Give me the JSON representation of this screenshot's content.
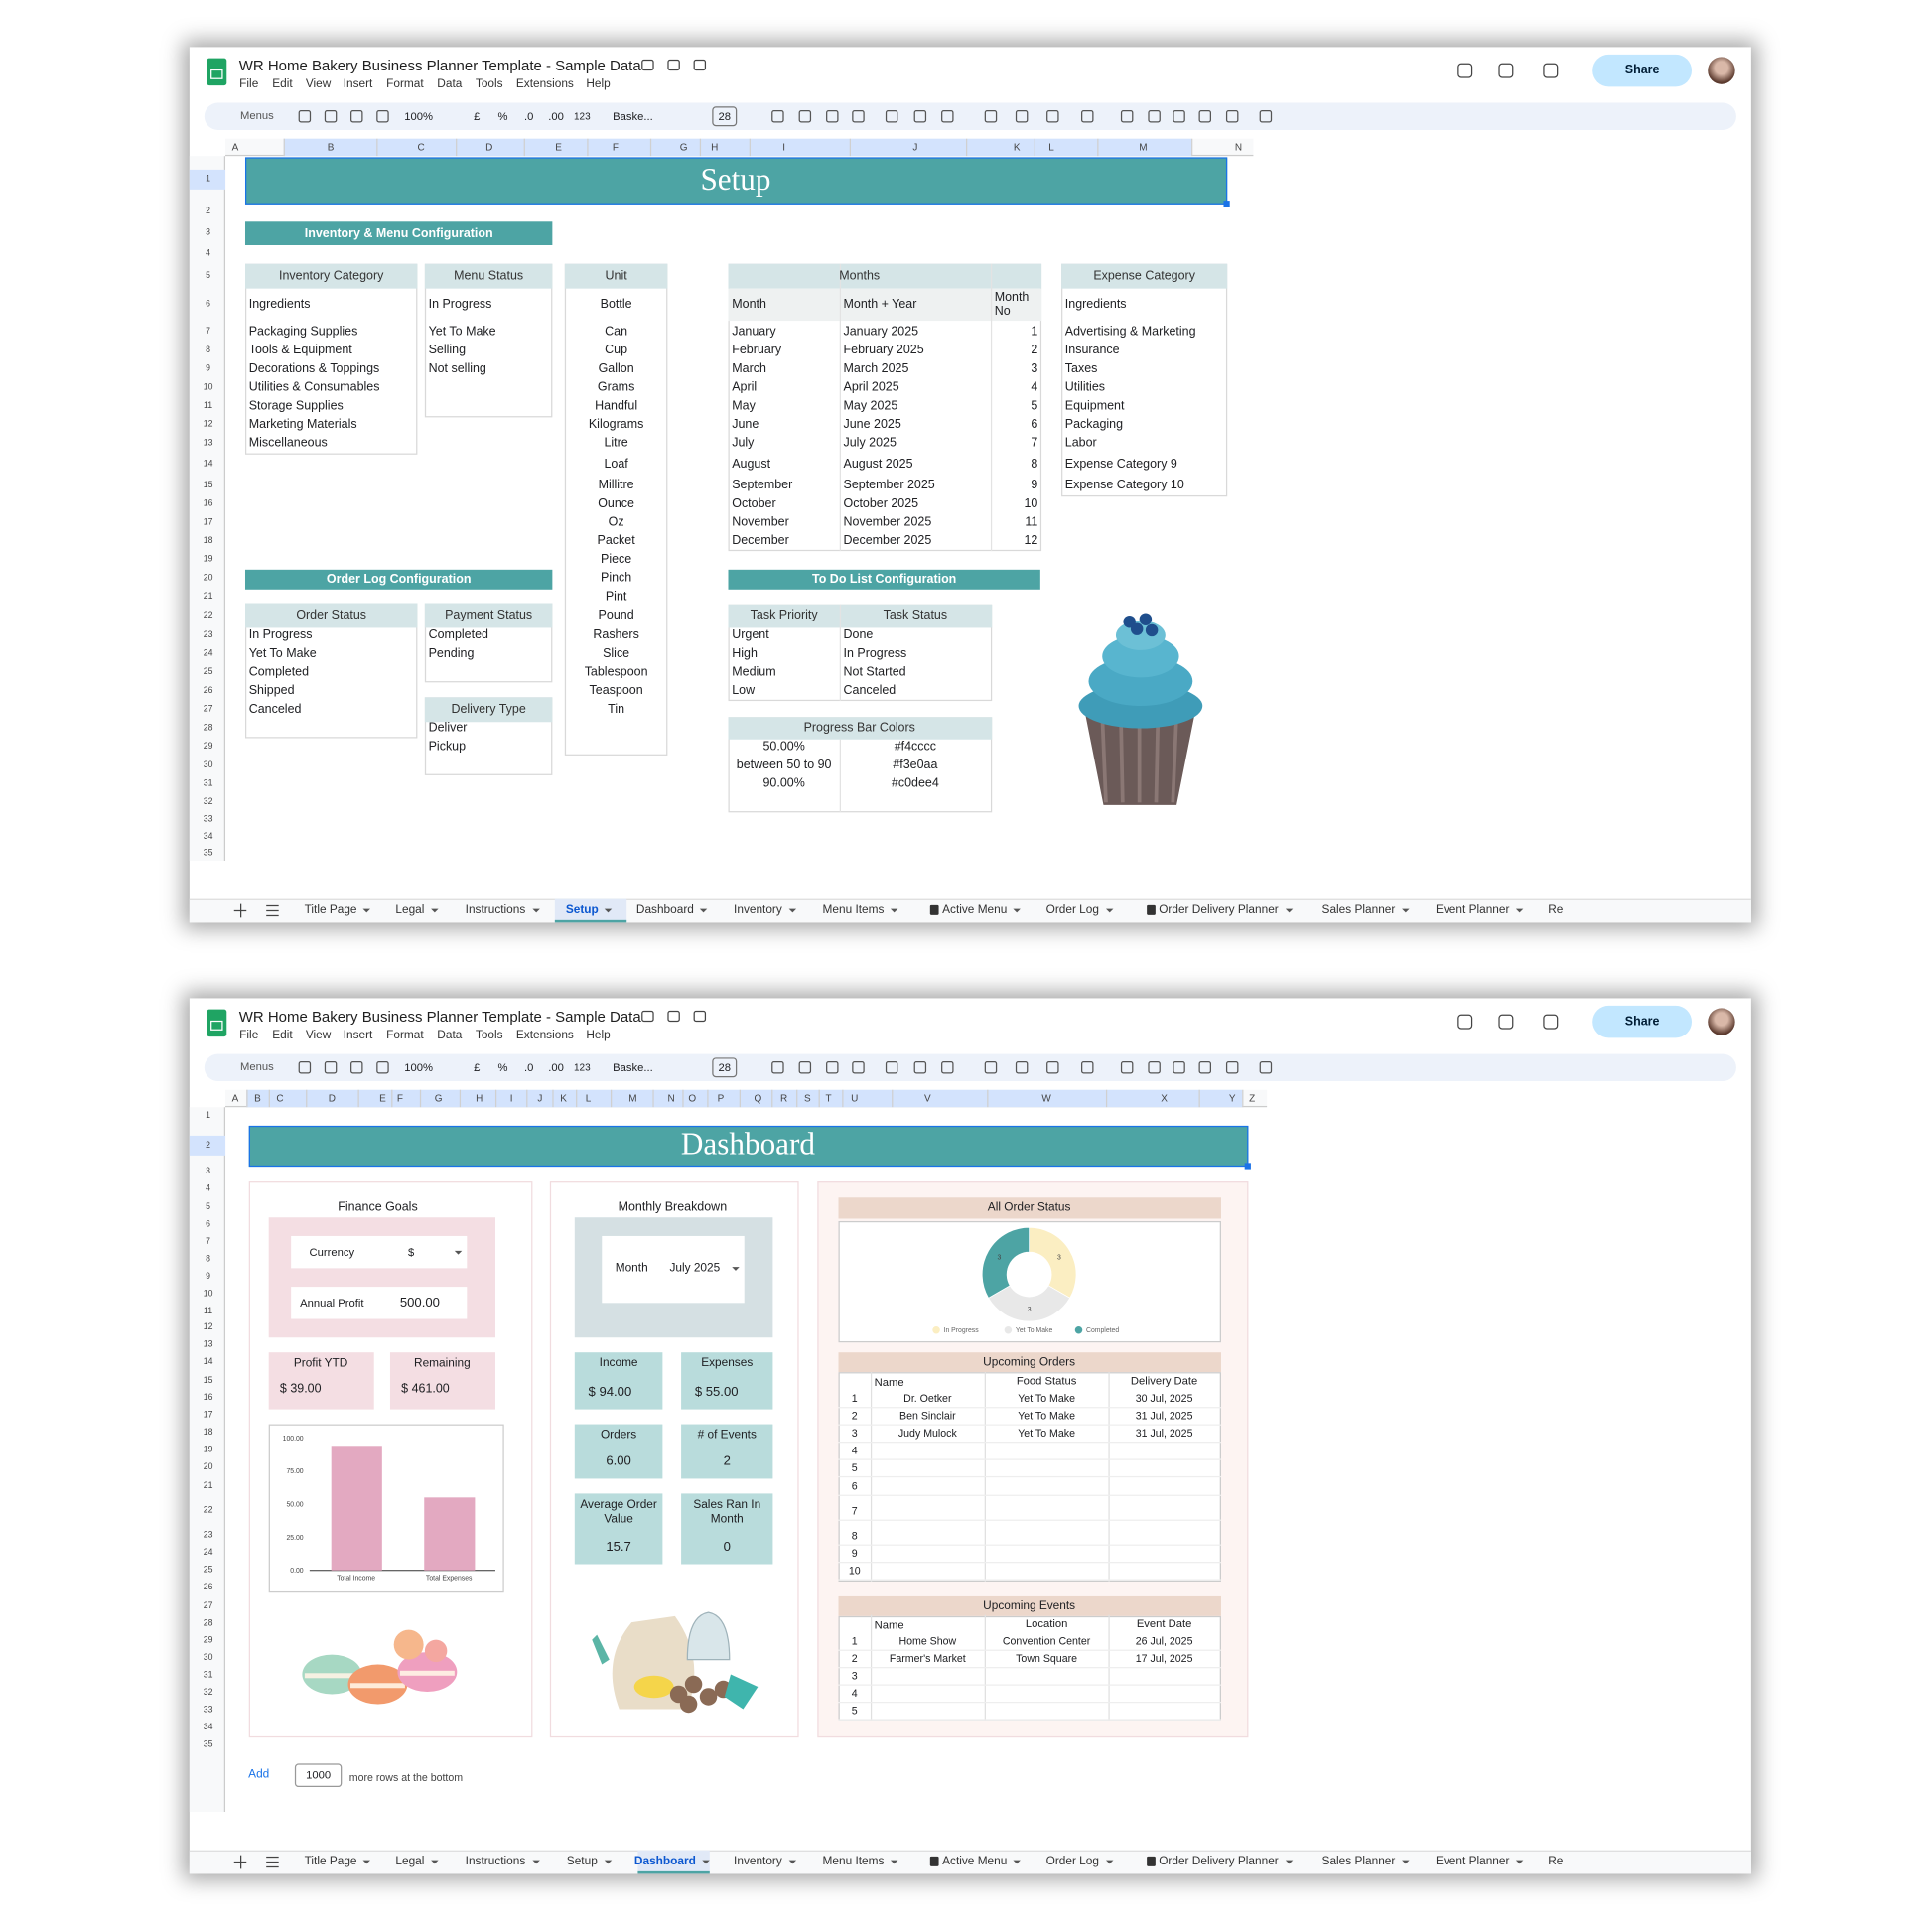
{
  "app": {
    "doc_title": "WR Home Bakery Business Planner Template - Sample Data",
    "menu": [
      "File",
      "Edit",
      "View",
      "Insert",
      "Format",
      "Data",
      "Tools",
      "Extensions",
      "Help"
    ],
    "toolbar": {
      "search": "Menus",
      "zoom": "100%",
      "currency": "£",
      "percent": "%",
      "decimal_less": ".0",
      "decimal_more": ".00",
      "number_format": "123",
      "font": "Baske...",
      "font_size": "28"
    },
    "share": "Share",
    "tabs": [
      "Title Page",
      "Legal",
      "Instructions",
      "Setup",
      "Dashboard",
      "Inventory",
      "Menu Items",
      "Active Menu",
      "Order Log",
      "Order Delivery Planner",
      "Sales Planner",
      "Event Planner",
      "Re"
    ]
  },
  "row_numbers": [
    1,
    2,
    3,
    4,
    5,
    6,
    7,
    8,
    9,
    10,
    11,
    12,
    13,
    14,
    15,
    16,
    17,
    18,
    19,
    20,
    21,
    22,
    23,
    24,
    25,
    26,
    27,
    28,
    29,
    30,
    31,
    32,
    33,
    34,
    35
  ],
  "windows": [
    {
      "columns": [
        "A",
        "B",
        "C",
        "D",
        "E",
        "F",
        "G",
        "H",
        "I",
        "J",
        "K",
        "L",
        "M",
        "N"
      ]
    },
    {
      "columns": [
        "A",
        "B",
        "C",
        "D",
        "E",
        "F",
        "G",
        "H",
        "I",
        "J",
        "K",
        "L",
        "M",
        "N",
        "O",
        "P",
        "Q",
        "R",
        "S",
        "T",
        "U",
        "V",
        "W",
        "X",
        "Y",
        "Z"
      ],
      "add_rows": {
        "button": "Add",
        "count": "1000",
        "text": "more rows at the bottom"
      }
    }
  ],
  "setup": {
    "title": "Setup",
    "sections": [
      "Inventory & Menu Configuration",
      "Order Log Configuration",
      "To Do List Configuration"
    ],
    "inventory_category": {
      "header": "Inventory Category",
      "items": [
        "Ingredients",
        "Packaging Supplies",
        "Tools & Equipment",
        "Decorations & Toppings",
        "Utilities & Consumables",
        "Storage Supplies",
        "Marketing Materials",
        "Miscellaneous"
      ]
    },
    "menu_status": {
      "header": "Menu Status",
      "items": [
        "In Progress",
        "Yet To Make",
        "Selling",
        "Not selling"
      ]
    },
    "unit": {
      "header": "Unit",
      "items": [
        "Bottle",
        "Can",
        "Cup",
        "Gallon",
        "Grams",
        "Handful",
        "Kilograms",
        "Litre",
        "Loaf",
        "Millitre",
        "Ounce",
        "Oz",
        "Packet",
        "Piece",
        "Pinch",
        "Pint",
        "Pound",
        "Rashers",
        "Slice",
        "Tablespoon",
        "Teaspoon",
        "Tin"
      ]
    },
    "months": {
      "title": "Months",
      "columns": [
        "Month",
        "Month + Year",
        "Month No"
      ],
      "rows": [
        [
          "January",
          "January 2025",
          1
        ],
        [
          "February",
          "February 2025",
          2
        ],
        [
          "March",
          "March 2025",
          3
        ],
        [
          "April",
          "April 2025",
          4
        ],
        [
          "May",
          "May 2025",
          5
        ],
        [
          "June",
          "June 2025",
          6
        ],
        [
          "July",
          "July 2025",
          7
        ],
        [
          "August",
          "August 2025",
          8
        ],
        [
          "September",
          "September 2025",
          9
        ],
        [
          "October",
          "October 2025",
          10
        ],
        [
          "November",
          "November 2025",
          11
        ],
        [
          "December",
          "December 2025",
          12
        ]
      ]
    },
    "expense_category": {
      "header": "Expense Category",
      "items": [
        "Ingredients",
        "Advertising & Marketing",
        "Insurance",
        "Taxes",
        "Utilities",
        "Equipment",
        "Packaging",
        "Labor",
        "Expense Category 9",
        "Expense Category 10"
      ]
    },
    "order_status": {
      "header": "Order Status",
      "items": [
        "In Progress",
        "Yet To Make",
        "Completed",
        "Shipped",
        "Canceled"
      ]
    },
    "payment_status": {
      "header": "Payment Status",
      "items": [
        "Completed",
        "Pending"
      ]
    },
    "delivery_type": {
      "header": "Delivery Type",
      "items": [
        "Deliver",
        "Pickup"
      ]
    },
    "todo": {
      "columns": [
        "Task Priority",
        "Task Status"
      ],
      "rows": [
        [
          "Urgent",
          "Done"
        ],
        [
          "High",
          "In Progress"
        ],
        [
          "Medium",
          "Not Started"
        ],
        [
          "Low",
          "Canceled"
        ]
      ]
    },
    "progress_colors": {
      "title": "Progress Bar Colors",
      "rows": [
        [
          "50.00%",
          "#f4cccc"
        ],
        [
          "between 50 to 90",
          "#f3e0aa"
        ],
        [
          "90.00%",
          "#c0dee4"
        ]
      ]
    }
  },
  "dashboard": {
    "title": "Dashboard",
    "finance": {
      "title": "Finance Goals",
      "currency_label": "Currency",
      "currency": "$",
      "annual_profit_label": "Annual Profit",
      "annual_profit": "500.00",
      "profit_ytd_label": "Profit YTD",
      "profit_ytd": "$ 39.00",
      "remaining_label": "Remaining",
      "remaining": "$ 461.00"
    },
    "monthly": {
      "title": "Monthly Breakdown",
      "month_label": "Month",
      "month": "July 2025",
      "cards": [
        {
          "label": "Income",
          "value": "$ 94.00"
        },
        {
          "label": "Expenses",
          "value": "$ 55.00"
        },
        {
          "label": "Orders",
          "value": "6.00"
        },
        {
          "label": "# of Events",
          "value": "2"
        },
        {
          "label": "Average Order Value",
          "value": "15.7"
        },
        {
          "label": "Sales Ran In Month",
          "value": "0"
        }
      ]
    },
    "upcoming_orders": {
      "title": "Upcoming Orders",
      "columns": [
        "Name",
        "Food Status",
        "Delivery Date"
      ],
      "rows": [
        {
          "no": 1,
          "name": "Dr. Oetker",
          "status": "Yet To Make",
          "date": "30 Jul, 2025"
        },
        {
          "no": 2,
          "name": "Ben Sinclair",
          "status": "Yet To Make",
          "date": "31 Jul, 2025"
        },
        {
          "no": 3,
          "name": "Judy Mulock",
          "status": "Yet To Make",
          "date": "31 Jul, 2025"
        },
        {
          "no": 4
        },
        {
          "no": 5
        },
        {
          "no": 6
        },
        {
          "no": 7
        },
        {
          "no": 8
        },
        {
          "no": 9
        },
        {
          "no": 10
        }
      ]
    },
    "upcoming_events": {
      "title": "Upcoming Events",
      "columns": [
        "Name",
        "Location",
        "Event Date"
      ],
      "rows": [
        {
          "no": 1,
          "name": "Home Show",
          "location": "Convention Center",
          "date": "26 Jul, 2025"
        },
        {
          "no": 2,
          "name": "Farmer's Market",
          "location": "Town Square",
          "date": "17 Jul, 2025"
        },
        {
          "no": 3
        },
        {
          "no": 4
        },
        {
          "no": 5
        }
      ]
    }
  },
  "chart_data": [
    {
      "type": "bar",
      "categories": [
        "Total Income",
        "Total Expenses"
      ],
      "values": [
        94,
        55
      ],
      "color": "#e3a9c1",
      "ylim": [
        0,
        100
      ],
      "yticks": [
        {
          "value": 0,
          "label": "0.00"
        },
        {
          "value": 25,
          "label": "25.00"
        },
        {
          "value": 50,
          "label": "50.00"
        },
        {
          "value": 75,
          "label": "75.00"
        },
        {
          "value": 100,
          "label": "100.00"
        }
      ]
    },
    {
      "type": "donut",
      "title": "All Order Status",
      "categories": [
        "In Progress",
        "Yet To Make",
        "Completed"
      ],
      "values": [
        3,
        3,
        3
      ],
      "colors": [
        "#fbeec2",
        "#e8e8e8",
        "#4da4a4"
      ],
      "legend": "bottom"
    }
  ]
}
